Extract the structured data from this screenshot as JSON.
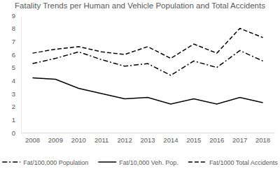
{
  "chart_data": {
    "type": "line",
    "title": "Fatality Trends per Human and Vehicle Population and Total Accidents",
    "categories": [
      "2008",
      "2009",
      "2010",
      "2011",
      "2012",
      "2013",
      "2014",
      "2015",
      "2016",
      "2017",
      "2018"
    ],
    "series": [
      {
        "name": "Fat/100,000 Population",
        "color": "#000000",
        "line_style": "dash-dot",
        "values": [
          5.3,
          5.7,
          6.2,
          5.6,
          5.1,
          5.3,
          4.4,
          5.5,
          5.0,
          6.3,
          5.5
        ]
      },
      {
        "name": "Fat/10,000 Veh. Pop.",
        "color": "#000000",
        "line_style": "solid",
        "values": [
          4.2,
          4.1,
          3.4,
          3.0,
          2.6,
          2.7,
          2.2,
          2.6,
          2.2,
          2.7,
          2.3
        ]
      },
      {
        "name": "Fat/1000 Total Accidents",
        "color": "#000000",
        "line_style": "dashed",
        "values": [
          6.1,
          6.4,
          6.6,
          6.2,
          6.0,
          6.6,
          5.7,
          6.8,
          6.1,
          8.0,
          7.3
        ]
      }
    ],
    "ylim": [
      0,
      9
    ],
    "yticks": [
      0,
      1,
      2,
      3,
      4,
      5,
      6,
      7,
      8,
      9
    ],
    "grid": false,
    "legend": "bottom"
  }
}
